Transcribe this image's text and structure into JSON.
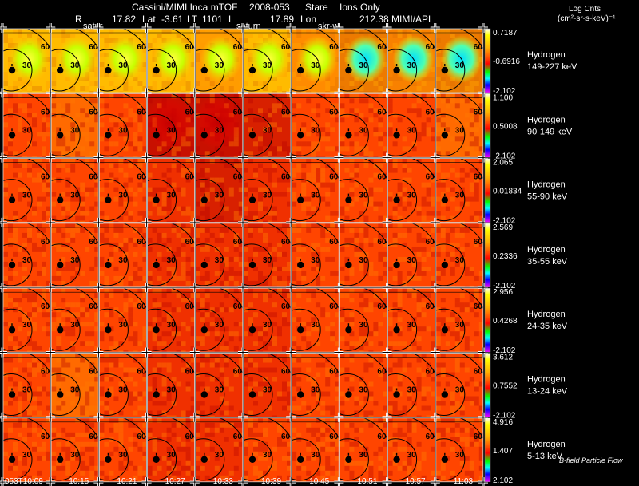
{
  "header": {
    "line1_left": "Cassini/MIMI Inca mTOF",
    "line1_mid": "2008-053",
    "line1_mode": "Stare",
    "line1_species": "Ions Only",
    "r_label": "R",
    "r_value": "17.82",
    "lat_label": "Lat",
    "lat_value": "-3.61",
    "lt_label": "LT",
    "lt_value": "1101",
    "l_label": "L",
    "l_value": "17.89",
    "lon_label": "Lon",
    "lon_value": "212.38",
    "credit": "MIMI/APL",
    "overlay_1": "satur",
    "overlay_2": "saturn",
    "overlay_3": "skr-w"
  },
  "units": {
    "line1": "Log Cnts",
    "line2": "(cm²-sr-s-keV)⁻¹"
  },
  "footer_note": "B-field Particle Flow",
  "chart_data": {
    "type": "heatmap",
    "title": "Cassini/MIMI Inca mTOF 2008-053 Stare Ions Only",
    "time_labels": [
      "053T10:09",
      "10:15",
      "10:21",
      "10:27",
      "10:33",
      "10:39",
      "10:45",
      "10:51",
      "10:57",
      "11:03"
    ],
    "contour_labels": [
      "30",
      "60"
    ],
    "colorbar_colors": [
      "#ffffff",
      "#ffff00",
      "#ffb000",
      "#ff5000",
      "#ff0000",
      "#00ff00",
      "#00ffff",
      "#0000ff",
      "#ff00ff"
    ],
    "rows": [
      {
        "species": "Hydrogen",
        "energy": "149-227 keV",
        "cmax": "0.7187",
        "cmid": "-0.6916",
        "cmin": "-2.102",
        "intensity": [
          0.72,
          0.7,
          0.68,
          0.62,
          0.56,
          0.62,
          0.5,
          0.38,
          0.42,
          0.4
        ]
      },
      {
        "species": "Hydrogen",
        "energy": "90-149 keV",
        "cmax": "1.100",
        "cmid": "0.5008",
        "cmin": "-2.102",
        "intensity": [
          0.5,
          0.52,
          0.5,
          0.3,
          0.25,
          0.4,
          0.48,
          0.5,
          0.5,
          0.52
        ]
      },
      {
        "species": "Hydrogen",
        "energy": "55-90 keV",
        "cmax": "2.065",
        "cmid": "0.01834",
        "cmin": "-2.102",
        "intensity": [
          0.5,
          0.5,
          0.48,
          0.42,
          0.4,
          0.45,
          0.5,
          0.5,
          0.5,
          0.5
        ]
      },
      {
        "species": "Hydrogen",
        "energy": "35-55 keV",
        "cmax": "2.569",
        "cmid": "0.2336",
        "cmin": "-2.102",
        "intensity": [
          0.5,
          0.5,
          0.5,
          0.44,
          0.42,
          0.46,
          0.5,
          0.5,
          0.5,
          0.5
        ]
      },
      {
        "species": "Hydrogen",
        "energy": "24-35 keV",
        "cmax": "2.956",
        "cmid": "0.4268",
        "cmin": "-2.102",
        "intensity": [
          0.5,
          0.5,
          0.5,
          0.45,
          0.43,
          0.46,
          0.5,
          0.5,
          0.5,
          0.5
        ]
      },
      {
        "species": "Hydrogen",
        "energy": "13-24 keV",
        "cmax": "3.612",
        "cmid": "0.7552",
        "cmin": "-2.102",
        "intensity": [
          0.5,
          0.52,
          0.5,
          0.45,
          0.44,
          0.46,
          0.5,
          0.5,
          0.5,
          0.5
        ]
      },
      {
        "species": "Hydrogen",
        "energy": "5-13 keV",
        "cmax": "4.916",
        "cmid": "1.407",
        "cmin": "2.102",
        "intensity": [
          0.5,
          0.5,
          0.5,
          0.46,
          0.45,
          0.48,
          0.5,
          0.5,
          0.5,
          0.5
        ]
      }
    ]
  }
}
